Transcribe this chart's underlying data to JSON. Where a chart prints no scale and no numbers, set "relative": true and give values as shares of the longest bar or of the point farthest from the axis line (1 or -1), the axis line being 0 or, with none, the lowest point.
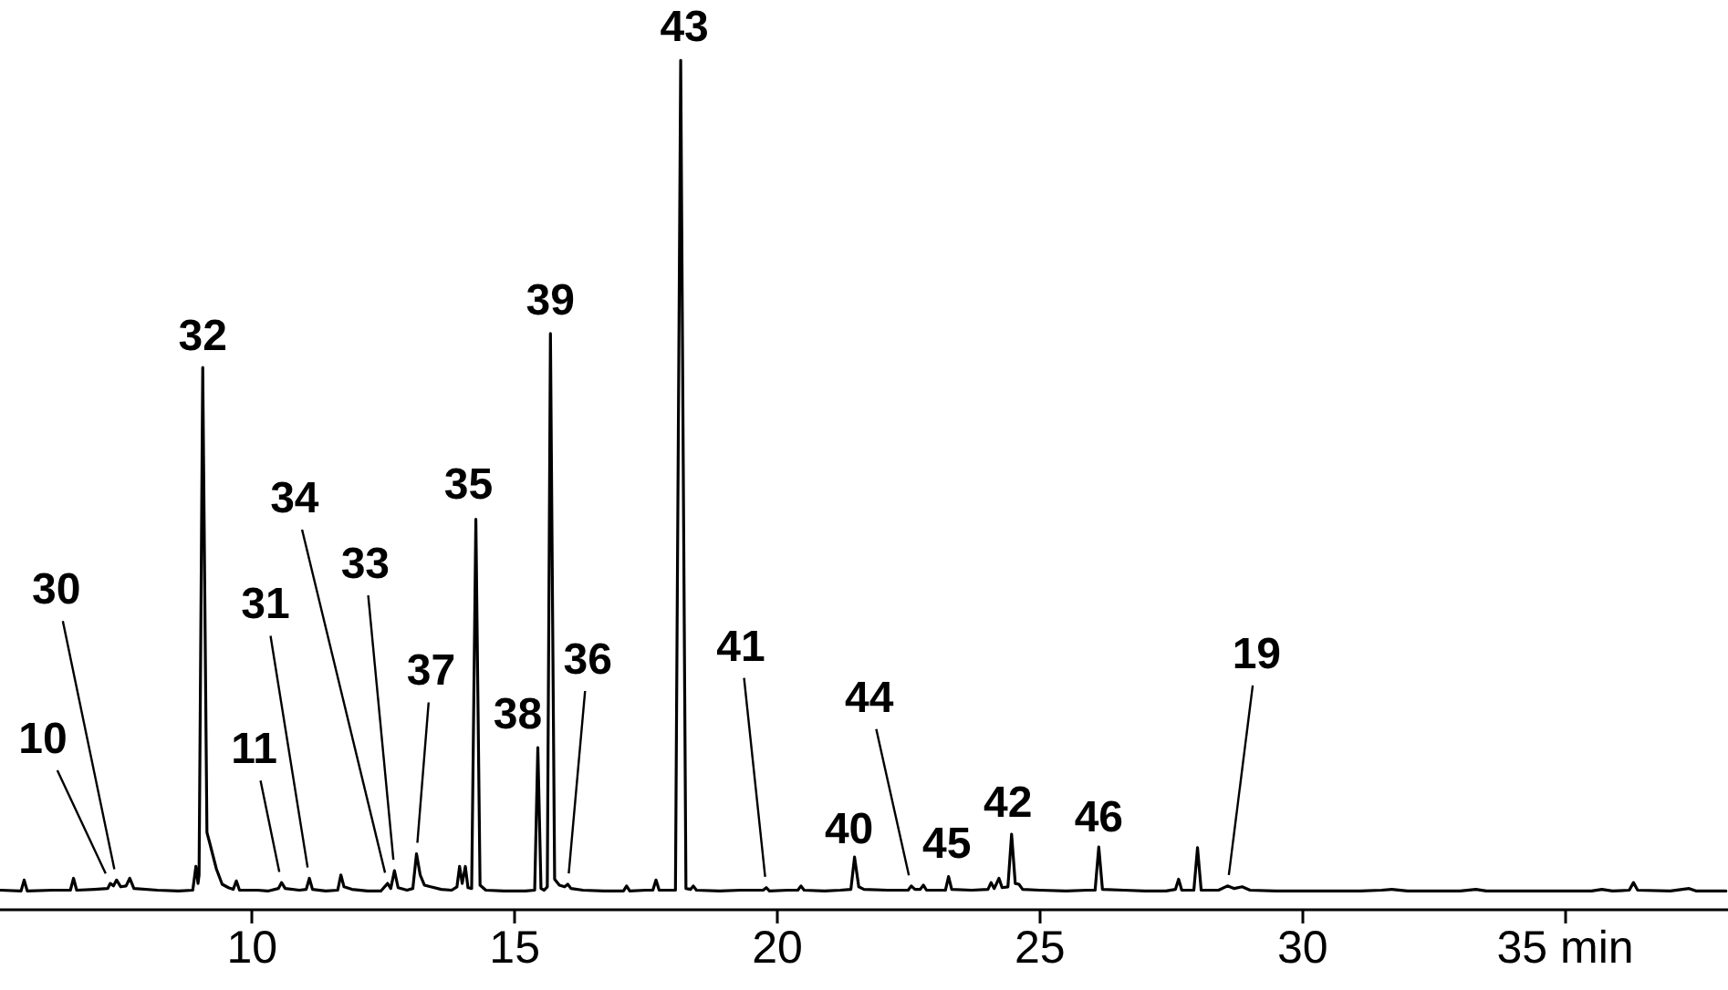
{
  "chart_data": {
    "type": "line",
    "relative": true,
    "color": "#000000",
    "marker": "none",
    "line_style": "solid",
    "xlim": [
      5.2,
      38.1
    ],
    "xticks": [
      10,
      15,
      20,
      25,
      30,
      {
        "value": 35,
        "label": "35 min"
      }
    ],
    "x": [
      5.21,
      5.6,
      5.66,
      5.72,
      6.2,
      6.54,
      6.6,
      6.66,
      7.0,
      7.25,
      7.3,
      7.36,
      7.42,
      7.5,
      7.6,
      7.67,
      7.75,
      8.2,
      8.6,
      8.87,
      8.93,
      8.97,
      8.99,
      9.06,
      9.14,
      9.2,
      9.32,
      9.43,
      9.55,
      9.64,
      9.7,
      9.76,
      10.1,
      10.3,
      10.5,
      10.56,
      10.63,
      10.9,
      11.03,
      11.09,
      11.15,
      11.4,
      11.63,
      11.69,
      11.75,
      11.9,
      12.2,
      12.45,
      12.58,
      12.64,
      12.71,
      12.78,
      12.95,
      13.06,
      13.13,
      13.2,
      13.28,
      13.4,
      13.6,
      13.8,
      13.9,
      13.95,
      14.0,
      14.06,
      14.11,
      14.18,
      14.26,
      14.34,
      14.45,
      14.8,
      15.2,
      15.38,
      15.44,
      15.5,
      15.56,
      15.62,
      15.68,
      15.76,
      15.85,
      15.95,
      16.01,
      16.07,
      16.3,
      16.7,
      17.07,
      17.13,
      17.19,
      17.5,
      17.63,
      17.69,
      17.75,
      18.06,
      18.16,
      18.26,
      18.35,
      18.4,
      18.46,
      18.9,
      19.3,
      19.73,
      19.79,
      19.85,
      20.2,
      20.39,
      20.45,
      20.51,
      20.9,
      21.2,
      21.4,
      21.47,
      21.55,
      21.65,
      22.1,
      22.49,
      22.55,
      22.62,
      22.72,
      22.78,
      22.84,
      23.1,
      23.2,
      23.26,
      23.32,
      23.7,
      24.01,
      24.07,
      24.13,
      24.22,
      24.28,
      24.39,
      24.46,
      24.53,
      24.6,
      24.67,
      25.0,
      25.5,
      25.9,
      26.05,
      26.12,
      26.19,
      26.6,
      27.0,
      27.4,
      27.58,
      27.64,
      27.7,
      27.93,
      28.0,
      28.07,
      28.4,
      28.57,
      28.7,
      28.85,
      29.0,
      29.5,
      30.5,
      31.1,
      31.5,
      31.7,
      32.0,
      33.0,
      33.3,
      33.5,
      34.5,
      35.5,
      35.7,
      35.9,
      36.22,
      36.3,
      36.38,
      37.0,
      37.36,
      37.5,
      38.06
    ],
    "values": [
      0.022,
      0.021,
      0.034,
      0.021,
      0.022,
      0.022,
      0.036,
      0.022,
      0.023,
      0.024,
      0.03,
      0.027,
      0.034,
      0.026,
      0.027,
      0.036,
      0.024,
      0.022,
      0.021,
      0.022,
      0.05,
      0.03,
      0.04,
      0.638,
      0.09,
      0.076,
      0.047,
      0.029,
      0.025,
      0.023,
      0.033,
      0.022,
      0.022,
      0.021,
      0.024,
      0.031,
      0.024,
      0.022,
      0.023,
      0.036,
      0.023,
      0.021,
      0.022,
      0.04,
      0.026,
      0.023,
      0.021,
      0.021,
      0.03,
      0.024,
      0.045,
      0.025,
      0.022,
      0.024,
      0.065,
      0.04,
      0.028,
      0.026,
      0.023,
      0.022,
      0.026,
      0.05,
      0.03,
      0.05,
      0.025,
      0.024,
      0.459,
      0.028,
      0.022,
      0.021,
      0.021,
      0.022,
      0.19,
      0.024,
      0.022,
      0.026,
      0.678,
      0.035,
      0.028,
      0.026,
      0.029,
      0.024,
      0.022,
      0.021,
      0.021,
      0.027,
      0.021,
      0.022,
      0.022,
      0.034,
      0.022,
      0.022,
      1,
      0.024,
      0.023,
      0.027,
      0.022,
      0.021,
      0.022,
      0.022,
      0.025,
      0.021,
      0.022,
      0.022,
      0.027,
      0.022,
      0.021,
      0.022,
      0.023,
      0.061,
      0.026,
      0.023,
      0.022,
      0.022,
      0.027,
      0.023,
      0.023,
      0.028,
      0.022,
      0.022,
      0.022,
      0.038,
      0.023,
      0.022,
      0.023,
      0.031,
      0.024,
      0.036,
      0.025,
      0.026,
      0.088,
      0.03,
      0.029,
      0.023,
      0.022,
      0.021,
      0.022,
      0.022,
      0.073,
      0.023,
      0.022,
      0.021,
      0.021,
      0.023,
      0.035,
      0.022,
      0.022,
      0.072,
      0.022,
      0.022,
      0.027,
      0.024,
      0.026,
      0.022,
      0.021,
      0.021,
      0.021,
      0.022,
      0.023,
      0.021,
      0.021,
      0.023,
      0.021,
      0.021,
      0.021,
      0.023,
      0.021,
      0.022,
      0.031,
      0.022,
      0.021,
      0.024,
      0.021,
      0.021
    ],
    "annotations": [
      {
        "text": "10",
        "x": 7.3,
        "y": 0.03
      },
      {
        "text": "30",
        "x": 7.42,
        "y": 0.034
      },
      {
        "text": "32",
        "x": 9.06,
        "y": 0.638
      },
      {
        "text": "11",
        "x": 10.56,
        "y": 0.031
      },
      {
        "text": "31",
        "x": 11.09,
        "y": 0.036
      },
      {
        "text": "34",
        "x": 12.58,
        "y": 0.03
      },
      {
        "text": "33",
        "x": 12.71,
        "y": 0.045
      },
      {
        "text": "37",
        "x": 13.13,
        "y": 0.065
      },
      {
        "text": "35",
        "x": 14.26,
        "y": 0.459
      },
      {
        "text": "38",
        "x": 15.44,
        "y": 0.19
      },
      {
        "text": "39",
        "x": 15.68,
        "y": 0.678
      },
      {
        "text": "36",
        "x": 16.01,
        "y": 0.029
      },
      {
        "text": "43",
        "x": 18.16,
        "y": 1
      },
      {
        "text": "41",
        "x": 19.79,
        "y": 0.025
      },
      {
        "text": "40",
        "x": 21.47,
        "y": 0.061
      },
      {
        "text": "44",
        "x": 22.55,
        "y": 0.027
      },
      {
        "text": "45",
        "x": 23.26,
        "y": 0.038
      },
      {
        "text": "42",
        "x": 24.46,
        "y": 0.088
      },
      {
        "text": "46",
        "x": 26.12,
        "y": 0.073
      },
      {
        "text": "19",
        "x": 28.57,
        "y": 0.027
      }
    ]
  }
}
